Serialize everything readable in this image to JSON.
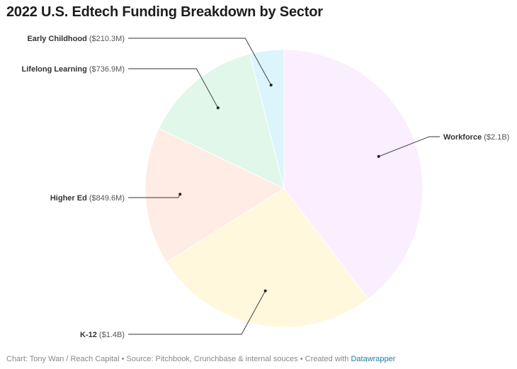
{
  "title": "2022 U.S. Edtech Funding Breakdown by Sector",
  "footer": {
    "credit": "Chart: Tony Wan / Reach Capital • Source: Pitchbook, Crunchbase & internal souces • Created with ",
    "link": "Datawrapper"
  },
  "chart_data": {
    "type": "pie",
    "title": "2022 U.S. Edtech Funding Breakdown by Sector",
    "unit": "$M",
    "categories": [
      "Workforce",
      "K-12",
      "Higher Ed",
      "Lifelong Learning",
      "Early Childhood"
    ],
    "values": [
      2100,
      1400,
      849.6,
      736.9,
      210.3
    ],
    "value_labels": [
      "($2.1B)",
      "($1.4B)",
      "($849.6M)",
      "($736.9M)",
      "($210.3M)"
    ],
    "colors": [
      "#fbeefe",
      "#fff8dd",
      "#ffece4",
      "#e0f7ea",
      "#dcf4fc"
    ],
    "start_angle_deg": 0,
    "direction": "clockwise",
    "legend": "none"
  }
}
